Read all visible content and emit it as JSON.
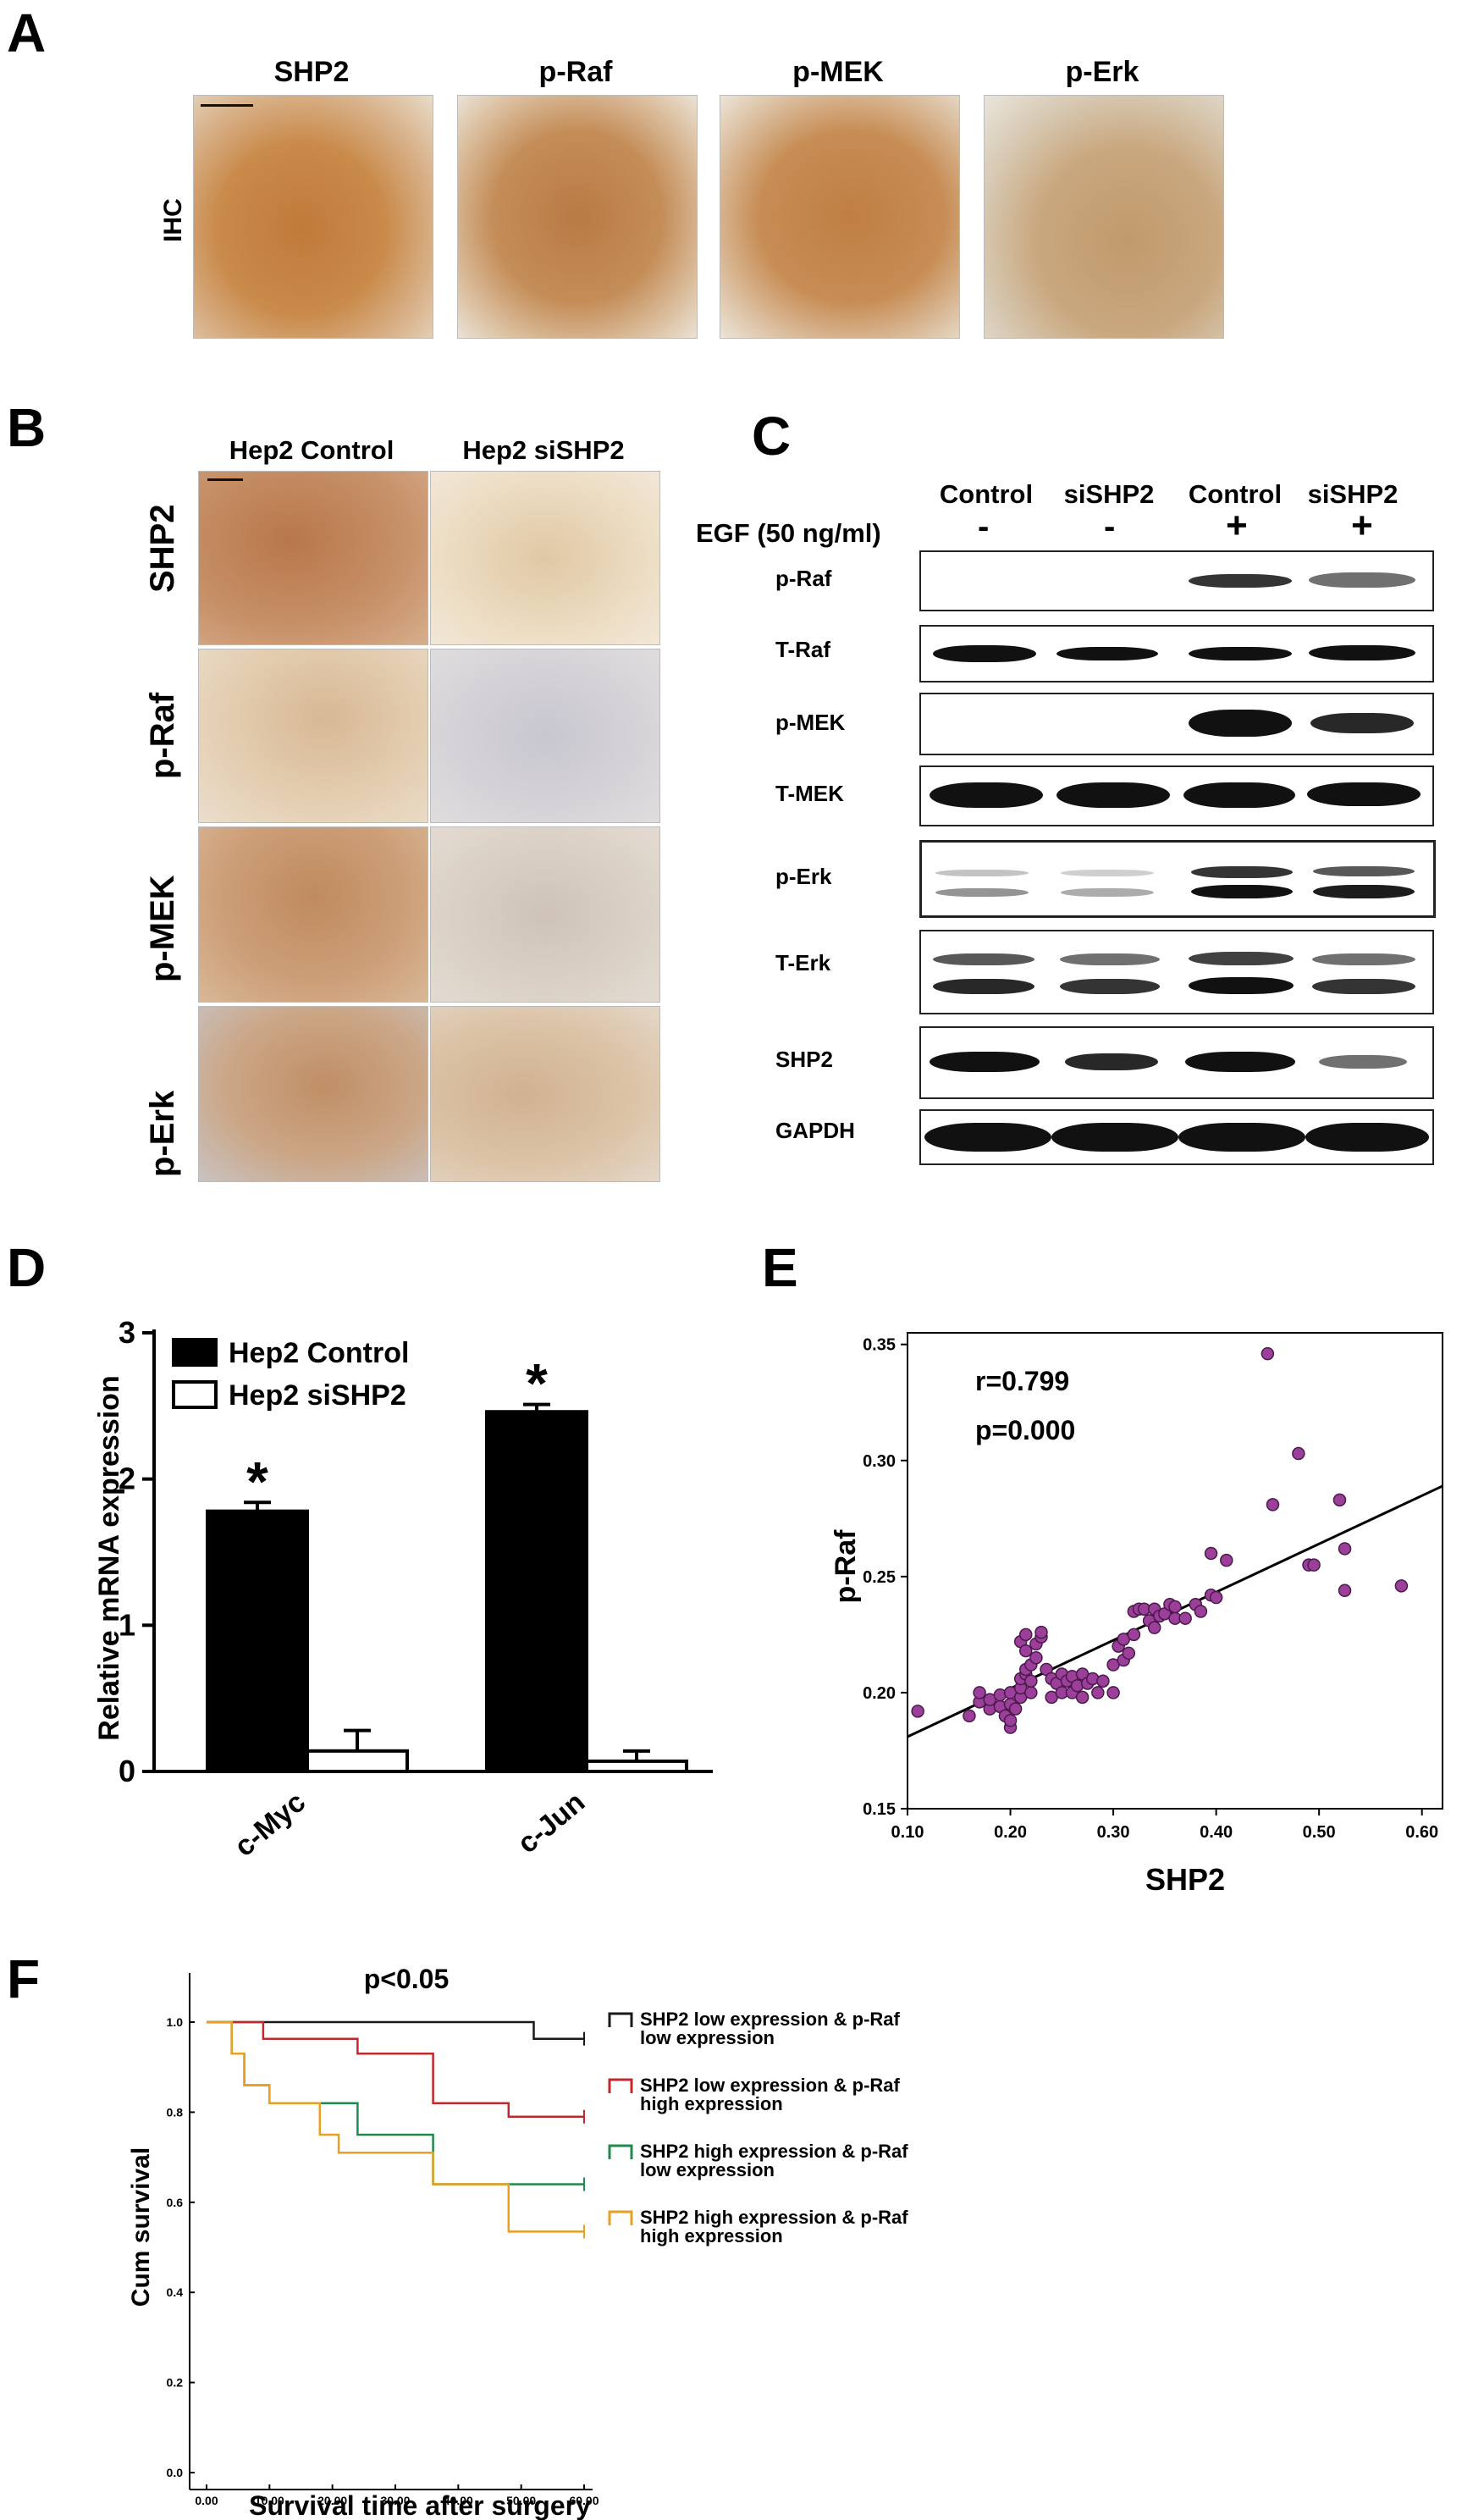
{
  "panel_letters": {
    "a": "A",
    "b": "B",
    "c": "C",
    "d": "D",
    "e": "E",
    "f": "F"
  },
  "panelA": {
    "row_label": "IHC",
    "titles": [
      "SHP2",
      "p-Raf",
      "p-MEK",
      "p-Erk"
    ],
    "colors": [
      "#c98a4a",
      "#c48d58",
      "#c78d55",
      "#c9a77e"
    ]
  },
  "panelB": {
    "columns": [
      "Hep2 Control",
      "Hep2 siSHP2"
    ],
    "rows": [
      "SHP2",
      "p-Raf",
      "p-MEK",
      "p-Erk"
    ]
  },
  "panelC": {
    "columns": [
      "Control",
      "siSHP2",
      "Control",
      "siSHP2"
    ],
    "egf_label": "EGF (50 ng/ml)",
    "egf_signs": [
      "-",
      "-",
      "+",
      "+"
    ],
    "rows": [
      "p-Raf",
      "T-Raf",
      "p-MEK",
      "T-MEK",
      "p-Erk",
      "T-Erk",
      "SHP2",
      "GAPDH"
    ]
  },
  "chart_data": [
    {
      "type": "bar",
      "ylabel": "Relative mRNA expression",
      "ylim": [
        0,
        3
      ],
      "yticks": [
        "0",
        "1",
        "2",
        "3"
      ],
      "categories": [
        "c-Myc",
        "c-Jun"
      ],
      "series": [
        {
          "name": "Hep2 Control",
          "values": [
            1.78,
            2.46
          ],
          "errors": [
            0.06,
            0.05
          ],
          "color": "#000000"
        },
        {
          "name": "Hep2 siSHP2",
          "values": [
            0.14,
            0.07
          ],
          "errors": [
            0.14,
            0.07
          ],
          "color": "#ffffff"
        }
      ],
      "annotations": [
        "*",
        "*"
      ]
    },
    {
      "type": "scatter",
      "xlabel": "SHP2",
      "ylabel": "p-Raf",
      "xlim": [
        0.1,
        0.62
      ],
      "ylim": [
        0.15,
        0.355
      ],
      "xticks": [
        "0.10",
        "0.20",
        "0.30",
        "0.40",
        "0.50",
        "0.60"
      ],
      "yticks": [
        "0.15",
        "0.20",
        "0.25",
        "0.30",
        "0.35"
      ],
      "annotations": [
        "r=0.799",
        "p=0.000"
      ],
      "point_color": "#9b3f9b",
      "fit_line": {
        "x": [
          0.1,
          0.62
        ],
        "y": [
          0.181,
          0.289
        ]
      },
      "points": [
        [
          0.11,
          0.192
        ],
        [
          0.16,
          0.19
        ],
        [
          0.17,
          0.196
        ],
        [
          0.17,
          0.2
        ],
        [
          0.18,
          0.193
        ],
        [
          0.18,
          0.197
        ],
        [
          0.19,
          0.194
        ],
        [
          0.19,
          0.199
        ],
        [
          0.195,
          0.19
        ],
        [
          0.2,
          0.185
        ],
        [
          0.2,
          0.188
        ],
        [
          0.2,
          0.195
        ],
        [
          0.2,
          0.2
        ],
        [
          0.205,
          0.193
        ],
        [
          0.21,
          0.198
        ],
        [
          0.21,
          0.202
        ],
        [
          0.21,
          0.206
        ],
        [
          0.215,
          0.208
        ],
        [
          0.215,
          0.21
        ],
        [
          0.21,
          0.222
        ],
        [
          0.215,
          0.218
        ],
        [
          0.215,
          0.225
        ],
        [
          0.22,
          0.2
        ],
        [
          0.22,
          0.205
        ],
        [
          0.22,
          0.212
        ],
        [
          0.225,
          0.215
        ],
        [
          0.225,
          0.221
        ],
        [
          0.23,
          0.224
        ],
        [
          0.23,
          0.226
        ],
        [
          0.235,
          0.21
        ],
        [
          0.24,
          0.206
        ],
        [
          0.24,
          0.198
        ],
        [
          0.245,
          0.204
        ],
        [
          0.25,
          0.208
        ],
        [
          0.25,
          0.2
        ],
        [
          0.255,
          0.205
        ],
        [
          0.26,
          0.207
        ],
        [
          0.26,
          0.2
        ],
        [
          0.265,
          0.203
        ],
        [
          0.27,
          0.208
        ],
        [
          0.27,
          0.198
        ],
        [
          0.275,
          0.204
        ],
        [
          0.28,
          0.206
        ],
        [
          0.285,
          0.2
        ],
        [
          0.29,
          0.205
        ],
        [
          0.3,
          0.2
        ],
        [
          0.3,
          0.212
        ],
        [
          0.305,
          0.22
        ],
        [
          0.31,
          0.214
        ],
        [
          0.31,
          0.223
        ],
        [
          0.315,
          0.217
        ],
        [
          0.32,
          0.225
        ],
        [
          0.32,
          0.235
        ],
        [
          0.325,
          0.236
        ],
        [
          0.33,
          0.236
        ],
        [
          0.335,
          0.231
        ],
        [
          0.34,
          0.228
        ],
        [
          0.34,
          0.236
        ],
        [
          0.345,
          0.233
        ],
        [
          0.35,
          0.234
        ],
        [
          0.355,
          0.238
        ],
        [
          0.36,
          0.232
        ],
        [
          0.36,
          0.237
        ],
        [
          0.37,
          0.232
        ],
        [
          0.38,
          0.238
        ],
        [
          0.385,
          0.235
        ],
        [
          0.395,
          0.242
        ],
        [
          0.4,
          0.241
        ],
        [
          0.395,
          0.26
        ],
        [
          0.41,
          0.257
        ],
        [
          0.455,
          0.281
        ],
        [
          0.45,
          0.346
        ],
        [
          0.48,
          0.303
        ],
        [
          0.49,
          0.255
        ],
        [
          0.495,
          0.255
        ],
        [
          0.52,
          0.283
        ],
        [
          0.525,
          0.262
        ],
        [
          0.525,
          0.244
        ],
        [
          0.58,
          0.246
        ]
      ]
    },
    {
      "type": "line",
      "title": "p<0.05",
      "xlabel": "Survival time after surgery",
      "ylabel": "Cum survival",
      "xlim": [
        0,
        60
      ],
      "ylim": [
        0,
        1
      ],
      "xticks": [
        "0.00",
        "10.00",
        "20.00",
        "30.00",
        "40.00",
        "50.00",
        "60.00"
      ],
      "yticks": [
        "0.0",
        "0.2",
        "0.4",
        "0.6",
        "0.8",
        "1.0"
      ],
      "series": [
        {
          "name": "SHP2 low expression & p-Raf low expression",
          "color": "#1a1a1a",
          "steps": [
            [
              0,
              1.0
            ],
            [
              52,
              1.0
            ],
            [
              52,
              0.963
            ],
            [
              60,
              0.963
            ]
          ]
        },
        {
          "name": "SHP2 low expression & p-Raf high expression",
          "color": "#c0282d",
          "steps": [
            [
              0,
              1.0
            ],
            [
              9,
              1.0
            ],
            [
              9,
              0.963
            ],
            [
              24,
              0.963
            ],
            [
              24,
              0.93
            ],
            [
              36,
              0.93
            ],
            [
              36,
              0.82
            ],
            [
              48,
              0.82
            ],
            [
              48,
              0.79
            ],
            [
              60,
              0.79
            ]
          ]
        },
        {
          "name": "SHP2 high expression & p-Raf low expression",
          "color": "#1f8a4c",
          "steps": [
            [
              0,
              1.0
            ],
            [
              4,
              1.0
            ],
            [
              4,
              0.93
            ],
            [
              6,
              0.93
            ],
            [
              6,
              0.86
            ],
            [
              10,
              0.86
            ],
            [
              10,
              0.82
            ],
            [
              24,
              0.82
            ],
            [
              24,
              0.75
            ],
            [
              36,
              0.75
            ],
            [
              36,
              0.64
            ],
            [
              60,
              0.64
            ]
          ]
        },
        {
          "name": "SHP2 high expression & p-Raf high expression",
          "color": "#e8a020",
          "steps": [
            [
              0,
              1.0
            ],
            [
              4,
              1.0
            ],
            [
              4,
              0.93
            ],
            [
              6,
              0.93
            ],
            [
              6,
              0.86
            ],
            [
              10,
              0.86
            ],
            [
              10,
              0.82
            ],
            [
              18,
              0.82
            ],
            [
              18,
              0.75
            ],
            [
              21,
              0.75
            ],
            [
              21,
              0.71
            ],
            [
              36,
              0.71
            ],
            [
              36,
              0.64
            ],
            [
              48,
              0.64
            ],
            [
              48,
              0.535
            ],
            [
              60,
              0.535
            ]
          ]
        }
      ]
    }
  ]
}
